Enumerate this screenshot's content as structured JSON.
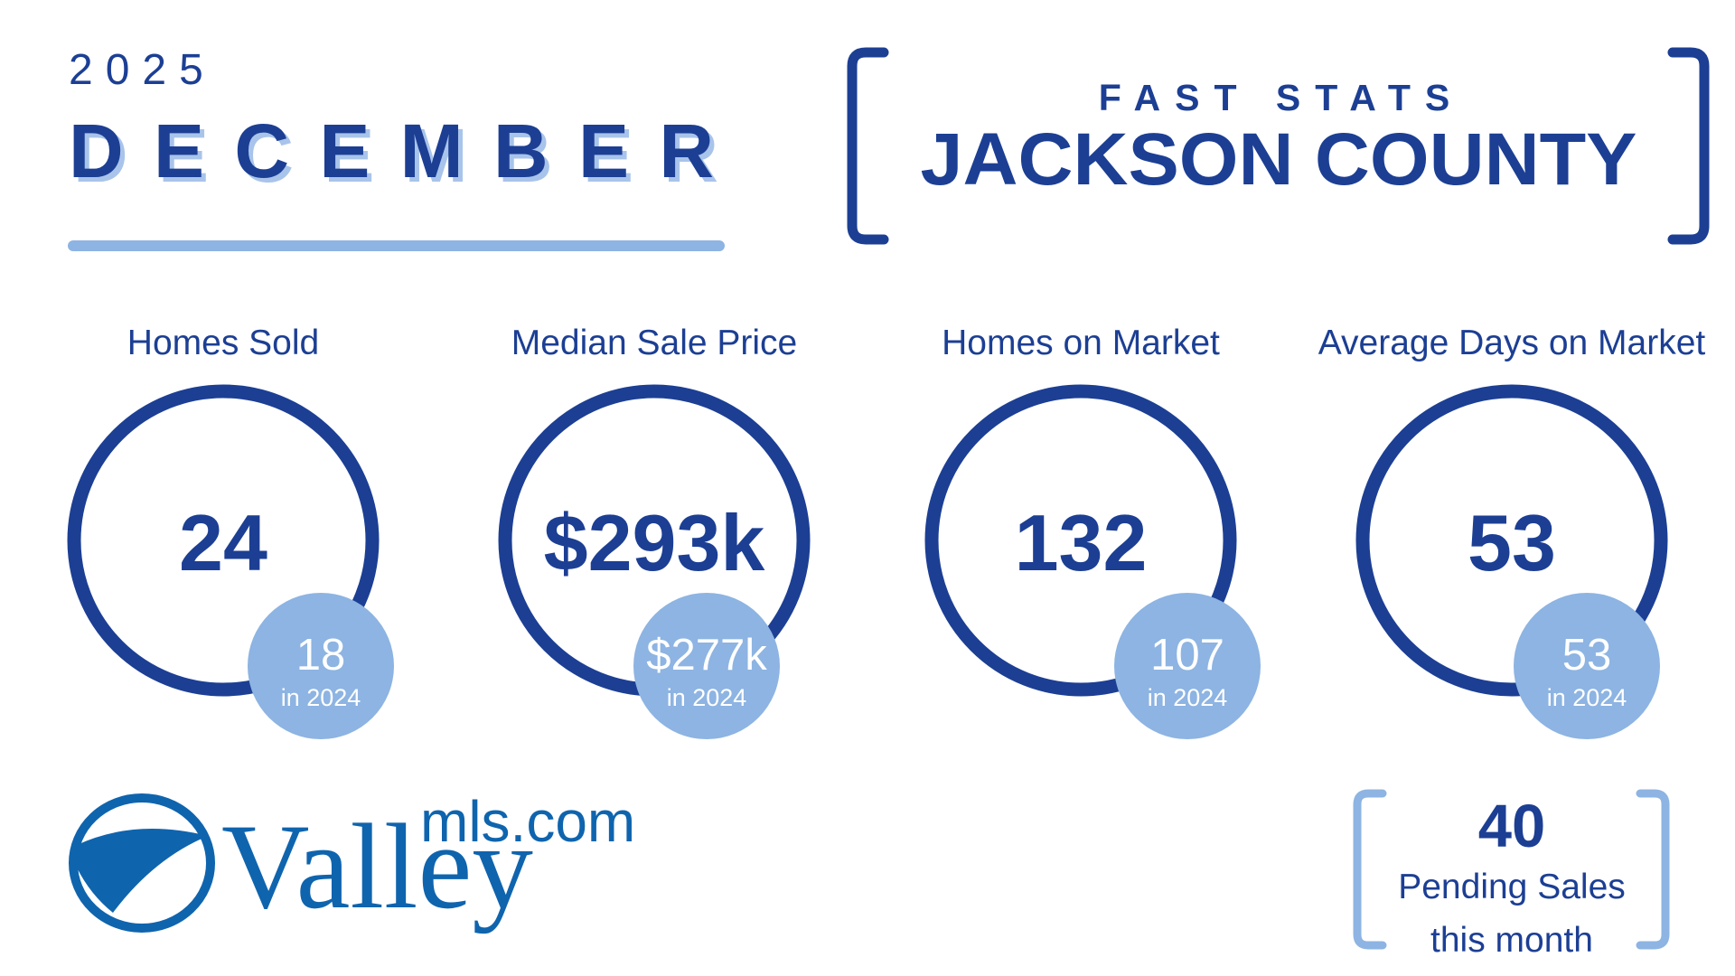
{
  "header": {
    "year": "2025",
    "month": "DECEMBER",
    "kicker": "FAST STATS",
    "county": "JACKSON COUNTY"
  },
  "stats": [
    {
      "label": "Homes Sold",
      "value": "24",
      "previous": "18",
      "previous_label": "in 2024"
    },
    {
      "label": "Median Sale Price",
      "value": "$293k",
      "previous": "$277k",
      "previous_label": "in 2024"
    },
    {
      "label": "Homes on Market",
      "value": "132",
      "previous": "107",
      "previous_label": "in 2024"
    },
    {
      "label": "Average Days on Market",
      "value": "53",
      "previous": "53",
      "previous_label": "in 2024"
    }
  ],
  "pending": {
    "value": "40",
    "label_lines": [
      "Pending Sales",
      "this month"
    ]
  },
  "logo": {
    "name": "Valley",
    "domain": "mls.com"
  }
}
